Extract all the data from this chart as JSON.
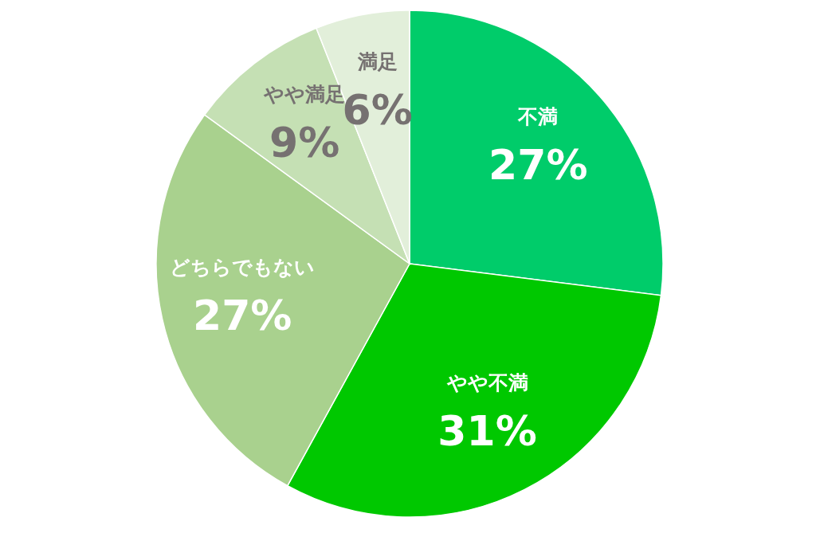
{
  "chart_data": {
    "type": "pie",
    "categories": [
      "不満",
      "やや不満",
      "どちらでもない",
      "やや満足",
      "満足"
    ],
    "values": [
      27,
      31,
      27,
      9,
      6
    ],
    "value_labels": [
      "27%",
      "31%",
      "27%",
      "9%",
      "6%"
    ],
    "colors": [
      "#00cc6a",
      "#00c800",
      "#a9d18e",
      "#c5e0b4",
      "#e2efda"
    ],
    "legend": false
  }
}
